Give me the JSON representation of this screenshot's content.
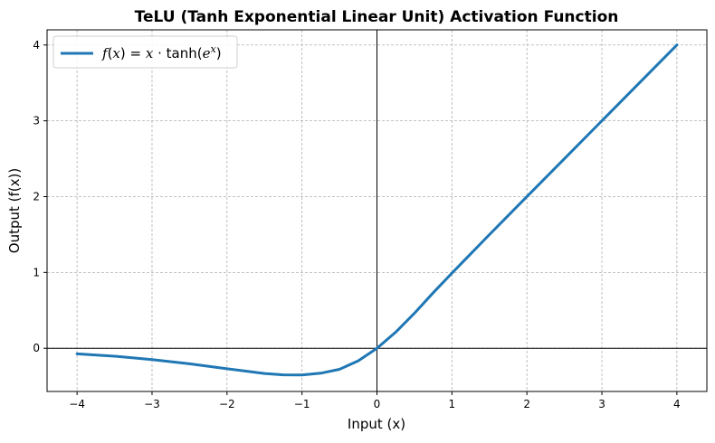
{
  "chart_data": {
    "type": "line",
    "title": "TeLU (Tanh Exponential Linear Unit) Activation Function",
    "xlabel": "Input (x)",
    "ylabel": "Output (f(x))",
    "xlim": [
      -4.4,
      4.4
    ],
    "ylim": [
      -0.57,
      4.2
    ],
    "xticks": [
      -4,
      -3,
      -2,
      -1,
      0,
      1,
      2,
      3,
      4
    ],
    "yticks": [
      0,
      1,
      2,
      3,
      4
    ],
    "grid": true,
    "grid_style": "dashed",
    "reference_lines": {
      "x0": true,
      "y0": true
    },
    "legend_position": "upper-left",
    "colors": {
      "line": "#1f77b4",
      "grid": "#b0b0b0",
      "axis": "#000000"
    },
    "series": [
      {
        "name": "f(x) = x · tanh(e^x)",
        "x": [
          -4.0,
          -3.5,
          -3.0,
          -2.5,
          -2.0,
          -1.5,
          -1.25,
          -1.0,
          -0.75,
          -0.5,
          -0.25,
          0.0,
          0.25,
          0.5,
          0.75,
          1.0,
          1.5,
          2.0,
          2.5,
          3.0,
          3.5,
          4.0
        ],
        "y": [
          -0.073,
          -0.105,
          -0.149,
          -0.205,
          -0.27,
          -0.333,
          -0.351,
          -0.352,
          -0.329,
          -0.278,
          -0.166,
          0.0,
          0.212,
          0.462,
          0.732,
          0.991,
          1.499,
          2.0,
          2.5,
          3.0,
          3.5,
          4.0
        ]
      }
    ]
  }
}
